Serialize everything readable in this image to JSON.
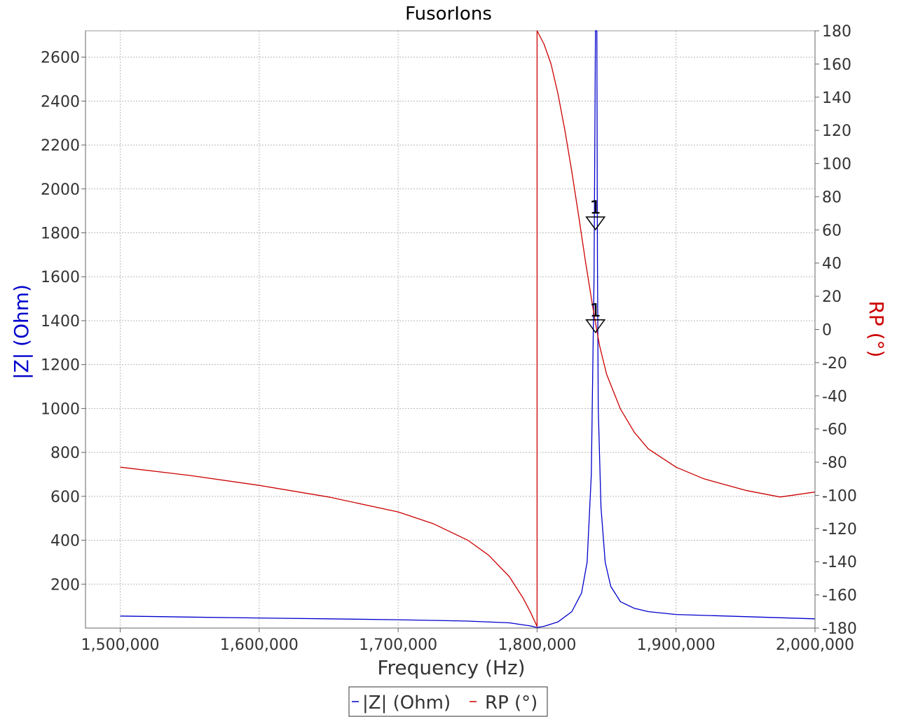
{
  "chart_data": {
    "type": "line",
    "title": "FusorIons",
    "xlabel": "Frequency (Hz)",
    "ylabel_left": "|Z| (Ohm)",
    "ylabel_right": "RP (°)",
    "xlim": [
      1475000,
      2000000
    ],
    "ylim_left": [
      0,
      2720
    ],
    "ylim_right": [
      -180,
      180
    ],
    "x_ticks": [
      1500000,
      1600000,
      1700000,
      1800000,
      1900000,
      2000000
    ],
    "x_tick_labels": [
      "1,500,000",
      "1,600,000",
      "1,700,000",
      "1,800,000",
      "1,900,000",
      "2,000,000"
    ],
    "y_left_ticks": [
      200,
      400,
      600,
      800,
      1000,
      1200,
      1400,
      1600,
      1800,
      2000,
      2200,
      2400,
      2600
    ],
    "y_left_tick_labels": [
      "200",
      "400",
      "600",
      "800",
      "1000",
      "1200",
      "1400",
      "1600",
      "1800",
      "2000",
      "2200",
      "2400",
      "2600"
    ],
    "y_right_ticks": [
      -180,
      -160,
      -140,
      -120,
      -100,
      -80,
      -60,
      -40,
      -20,
      0,
      20,
      40,
      60,
      80,
      100,
      120,
      140,
      160,
      180
    ],
    "y_right_tick_labels": [
      "-180",
      "-160",
      "-140",
      "-120",
      "-100",
      "-80",
      "-60",
      "-40",
      "-20",
      "0",
      "20",
      "40",
      "60",
      "80",
      "100",
      "120",
      "140",
      "160",
      "180"
    ],
    "grid": true,
    "legend_position": "bottom-center",
    "series": [
      {
        "name": "|Z| (Ohm)",
        "axis": "left",
        "color": "#0000cc",
        "x": [
          1500000,
          1550000,
          1600000,
          1650000,
          1700000,
          1750000,
          1780000,
          1795000,
          1800000,
          1805000,
          1815000,
          1825000,
          1832000,
          1836000,
          1839000,
          1841000,
          1842000,
          1842600,
          1843000,
          1843400,
          1844000,
          1846000,
          1849000,
          1853000,
          1860000,
          1870000,
          1880000,
          1900000,
          1950000,
          2000000
        ],
        "y": [
          55,
          50,
          46,
          42,
          38,
          32,
          24,
          10,
          3,
          8,
          28,
          75,
          160,
          300,
          700,
          1600,
          2720,
          2720,
          2720,
          1700,
          1000,
          550,
          300,
          190,
          120,
          90,
          75,
          62,
          52,
          42
        ]
      },
      {
        "name": "RP (°)",
        "axis": "right",
        "color": "#cc0000",
        "x": [
          1500000,
          1550000,
          1600000,
          1650000,
          1700000,
          1725000,
          1750000,
          1765000,
          1780000,
          1790000,
          1795000,
          1800000,
          1800001,
          1805000,
          1810000,
          1815000,
          1820000,
          1825000,
          1830000,
          1835000,
          1840000,
          1842000,
          1845000,
          1850000,
          1860000,
          1870000,
          1880000,
          1900000,
          1920000,
          1950000,
          1975000,
          2000000
        ],
        "y": [
          -83,
          -88,
          -94,
          -101,
          -110,
          -117,
          -127,
          -136,
          -149,
          -162,
          -170,
          -179,
          180,
          172,
          160,
          142,
          120,
          95,
          68,
          40,
          14,
          4,
          -10,
          -27,
          -48,
          -62,
          -72,
          -83,
          -90,
          -97,
          -101,
          -98
        ]
      }
    ],
    "markers": [
      {
        "label": "1",
        "x": 1842000,
        "axis": "right",
        "y": 64
      },
      {
        "label": "1",
        "x": 1842000,
        "axis": "right",
        "y": 2
      }
    ]
  }
}
